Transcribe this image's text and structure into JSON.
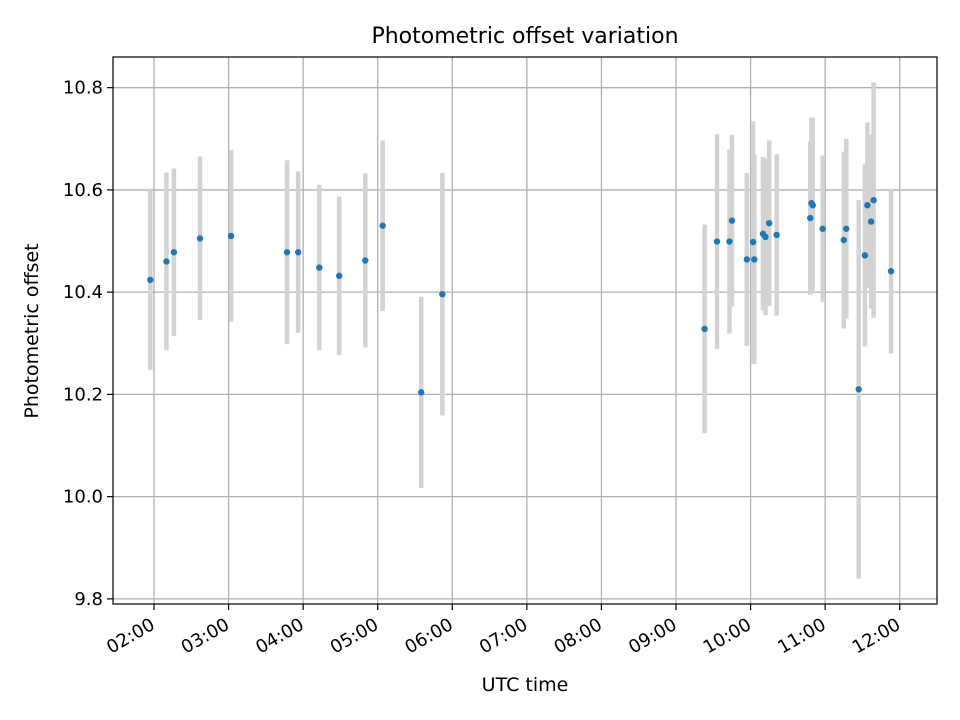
{
  "chart_data": {
    "type": "scatter",
    "title": "Photometric offset variation",
    "xlabel": "UTC time",
    "ylabel": "Photometric offset",
    "xlim": [
      "01:27",
      "12:30"
    ],
    "ylim": [
      9.79,
      10.86
    ],
    "grid": true,
    "x_ticks": [
      "02:00",
      "03:00",
      "04:00",
      "05:00",
      "06:00",
      "07:00",
      "08:00",
      "09:00",
      "10:00",
      "11:00",
      "12:00"
    ],
    "y_ticks": [
      "9.8",
      "10.0",
      "10.2",
      "10.4",
      "10.6",
      "10.8"
    ],
    "colors": {
      "points": "#1f77b4",
      "errorbars": "#d3d3d3",
      "grid": "#b0b0b0"
    },
    "series": [
      {
        "points": [
          {
            "x": "01:57",
            "y": 10.424,
            "err": 0.176
          },
          {
            "x": "02:10",
            "y": 10.46,
            "err": 0.174
          },
          {
            "x": "02:16",
            "y": 10.478,
            "err": 0.164
          },
          {
            "x": "02:37",
            "y": 10.505,
            "err": 0.16
          },
          {
            "x": "03:02",
            "y": 10.51,
            "err": 0.168
          },
          {
            "x": "03:47",
            "y": 10.478,
            "err": 0.18
          },
          {
            "x": "03:56",
            "y": 10.478,
            "err": 0.158
          },
          {
            "x": "04:13",
            "y": 10.448,
            "err": 0.162
          },
          {
            "x": "04:29",
            "y": 10.432,
            "err": 0.155
          },
          {
            "x": "04:50",
            "y": 10.462,
            "err": 0.17
          },
          {
            "x": "05:04",
            "y": 10.53,
            "err": 0.167
          },
          {
            "x": "05:35",
            "y": 10.204,
            "err": 0.187
          },
          {
            "x": "05:52",
            "y": 10.396,
            "err": 0.237
          },
          {
            "x": "09:23",
            "y": 10.328,
            "err": 0.204
          },
          {
            "x": "09:33",
            "y": 10.499,
            "err": 0.21
          },
          {
            "x": "09:43",
            "y": 10.499,
            "err": 0.18
          },
          {
            "x": "09:45",
            "y": 10.54,
            "err": 0.168
          },
          {
            "x": "09:57",
            "y": 10.464,
            "err": 0.169
          },
          {
            "x": "10:02",
            "y": 10.498,
            "err": 0.236
          },
          {
            "x": "10:03",
            "y": 10.464,
            "err": 0.205
          },
          {
            "x": "10:10",
            "y": 10.514,
            "err": 0.15
          },
          {
            "x": "10:12",
            "y": 10.508,
            "err": 0.153
          },
          {
            "x": "10:15",
            "y": 10.535,
            "err": 0.162
          },
          {
            "x": "10:21",
            "y": 10.512,
            "err": 0.158
          },
          {
            "x": "10:48",
            "y": 10.545,
            "err": 0.15
          },
          {
            "x": "10:49",
            "y": 10.574,
            "err": 0.168
          },
          {
            "x": "10:50",
            "y": 10.57,
            "err": 0.17
          },
          {
            "x": "10:58",
            "y": 10.524,
            "err": 0.143
          },
          {
            "x": "11:15",
            "y": 10.502,
            "err": 0.173
          },
          {
            "x": "11:17",
            "y": 10.524,
            "err": 0.176
          },
          {
            "x": "11:27",
            "y": 10.21,
            "err": 0.37
          },
          {
            "x": "11:32",
            "y": 10.472,
            "err": 0.178
          },
          {
            "x": "11:34",
            "y": 10.57,
            "err": 0.162
          },
          {
            "x": "11:37",
            "y": 10.538,
            "err": 0.17
          },
          {
            "x": "11:39",
            "y": 10.58,
            "err": 0.23
          },
          {
            "x": "11:53",
            "y": 10.441,
            "err": 0.161
          }
        ]
      }
    ]
  }
}
